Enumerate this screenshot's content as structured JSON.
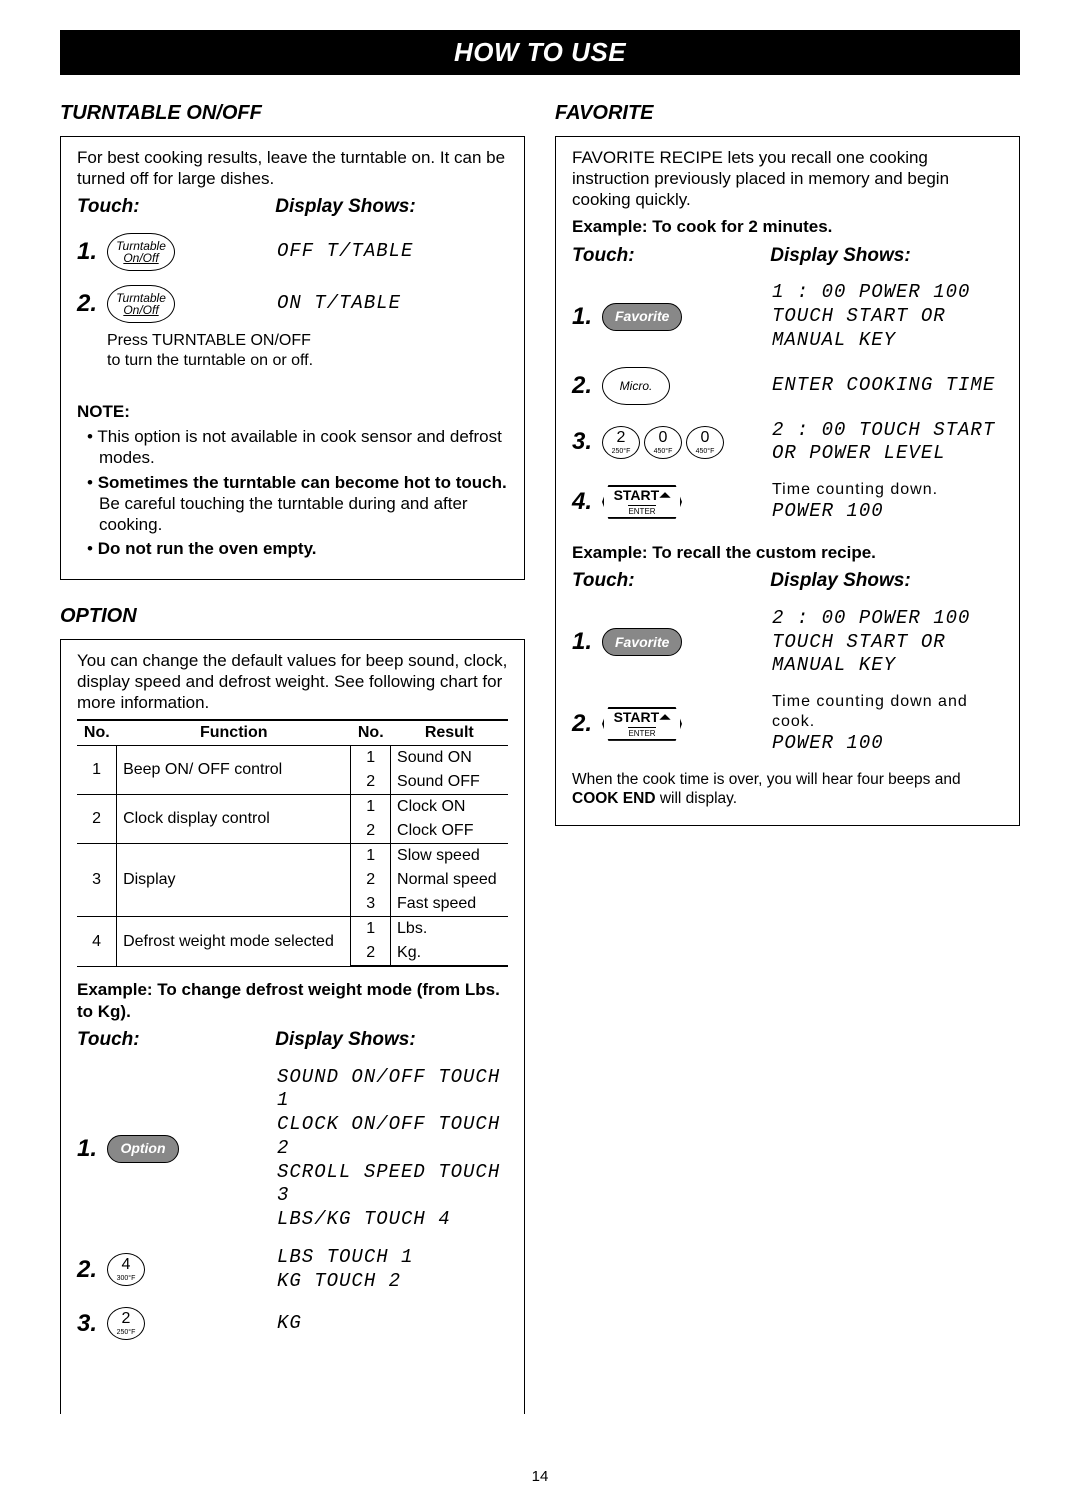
{
  "title": "HOW TO USE",
  "page_number": "14",
  "left": {
    "turntable": {
      "heading": "TURNTABLE ON/OFF",
      "intro": "For best cooking results, leave the turntable on. It can be turned off for large dishes.",
      "touch_label": "Touch:",
      "display_label": "Display Shows:",
      "steps": [
        {
          "n": "1.",
          "btn_top": "Turntable",
          "btn_bot": "On/Off",
          "disp": "OFF T/TABLE"
        },
        {
          "n": "2.",
          "btn_top": "Turntable",
          "btn_bot": "On/Off",
          "disp": "ON T/TABLE"
        }
      ],
      "step2_note": "Press TURNTABLE ON/OFF\nto turn the turntable on or off.",
      "note_label": "NOTE:",
      "notes_html": [
        "This option is not available in cook sensor and defrost modes.",
        "<b>Sometimes the turntable can become hot to touch.</b> Be careful touching the turntable during and after cooking.",
        "<b>Do not run the oven empty.</b>"
      ]
    },
    "option": {
      "heading": "OPTION",
      "intro": "You can change the default values for beep sound, clock, display speed and defrost weight. See following chart for more information.",
      "table": {
        "headers": [
          "No.",
          "Function",
          "No.",
          "Result"
        ],
        "rows": [
          [
            "1",
            "Beep ON/ OFF control",
            [
              "1",
              "2"
            ],
            [
              "Sound ON",
              "Sound OFF"
            ]
          ],
          [
            "2",
            "Clock display control",
            [
              "1",
              "2"
            ],
            [
              "Clock ON",
              "Clock OFF"
            ]
          ],
          [
            "3",
            "Display",
            [
              "1",
              "2",
              "3"
            ],
            [
              "Slow speed",
              "Normal speed",
              "Fast speed"
            ]
          ],
          [
            "4",
            "Defrost weight mode selected",
            [
              "1",
              "2"
            ],
            [
              "Lbs.",
              "Kg."
            ]
          ]
        ]
      },
      "example_label": "Example: To change defrost weight mode (from Lbs. to Kg).",
      "touch_label": "Touch:",
      "display_label": "Display Shows:",
      "steps": [
        {
          "n": "1.",
          "btn_type": "pill",
          "btn_text": "Option",
          "disp": "SOUND ON/OFF TOUCH 1\nCLOCK ON/OFF TOUCH 2\nSCROLL SPEED TOUCH 3\nLBS/KG TOUCH 4"
        },
        {
          "n": "2.",
          "btn_type": "digit",
          "btn_text": "4",
          "btn_sub": "300°F",
          "disp": "LBS TOUCH 1\nKG TOUCH 2"
        },
        {
          "n": "3.",
          "btn_type": "digit",
          "btn_text": "2",
          "btn_sub": "250°F",
          "disp": "KG"
        }
      ]
    }
  },
  "right": {
    "favorite": {
      "heading": "FAVORITE",
      "intro": "FAVORITE RECIPE lets you recall one cooking instruction previously placed in memory and begin cooking quickly.",
      "example1_label": "Example: To cook for 2 minutes.",
      "touch_label": "Touch:",
      "display_label": "Display Shows:",
      "steps1": [
        {
          "n": "1.",
          "btn_type": "pill",
          "btn_text": "Favorite",
          "disp": "1 : 00 POWER 100\nTOUCH START OR\nMANUAL KEY"
        },
        {
          "n": "2.",
          "btn_type": "oval",
          "btn_text": "Micro.",
          "disp": "ENTER COOKING TIME"
        },
        {
          "n": "3.",
          "btn_type": "digits3",
          "disp": "2 : 00 TOUCH START\nOR POWER LEVEL"
        },
        {
          "n": "4.",
          "btn_type": "start",
          "btn_text": "START",
          "btn_sub": "ENTER",
          "note": "Time counting down.",
          "disp": "POWER 100"
        }
      ],
      "digits3": [
        {
          "d": "2",
          "s": "250°F"
        },
        {
          "d": "0",
          "s": "450°F"
        },
        {
          "d": "0",
          "s": "450°F"
        }
      ],
      "example2_label": "Example: To recall the custom recipe.",
      "steps2": [
        {
          "n": "1.",
          "btn_type": "pill",
          "btn_text": "Favorite",
          "disp": "2 : 00 POWER 100\nTOUCH START OR\nMANUAL KEY"
        },
        {
          "n": "2.",
          "btn_type": "start",
          "btn_text": "START",
          "btn_sub": "ENTER",
          "note": "Time counting down and cook.",
          "disp": "POWER 100"
        }
      ],
      "end_note_html": "When the cook time is over, you will hear four beeps and <b>COOK END</b> will display."
    }
  }
}
